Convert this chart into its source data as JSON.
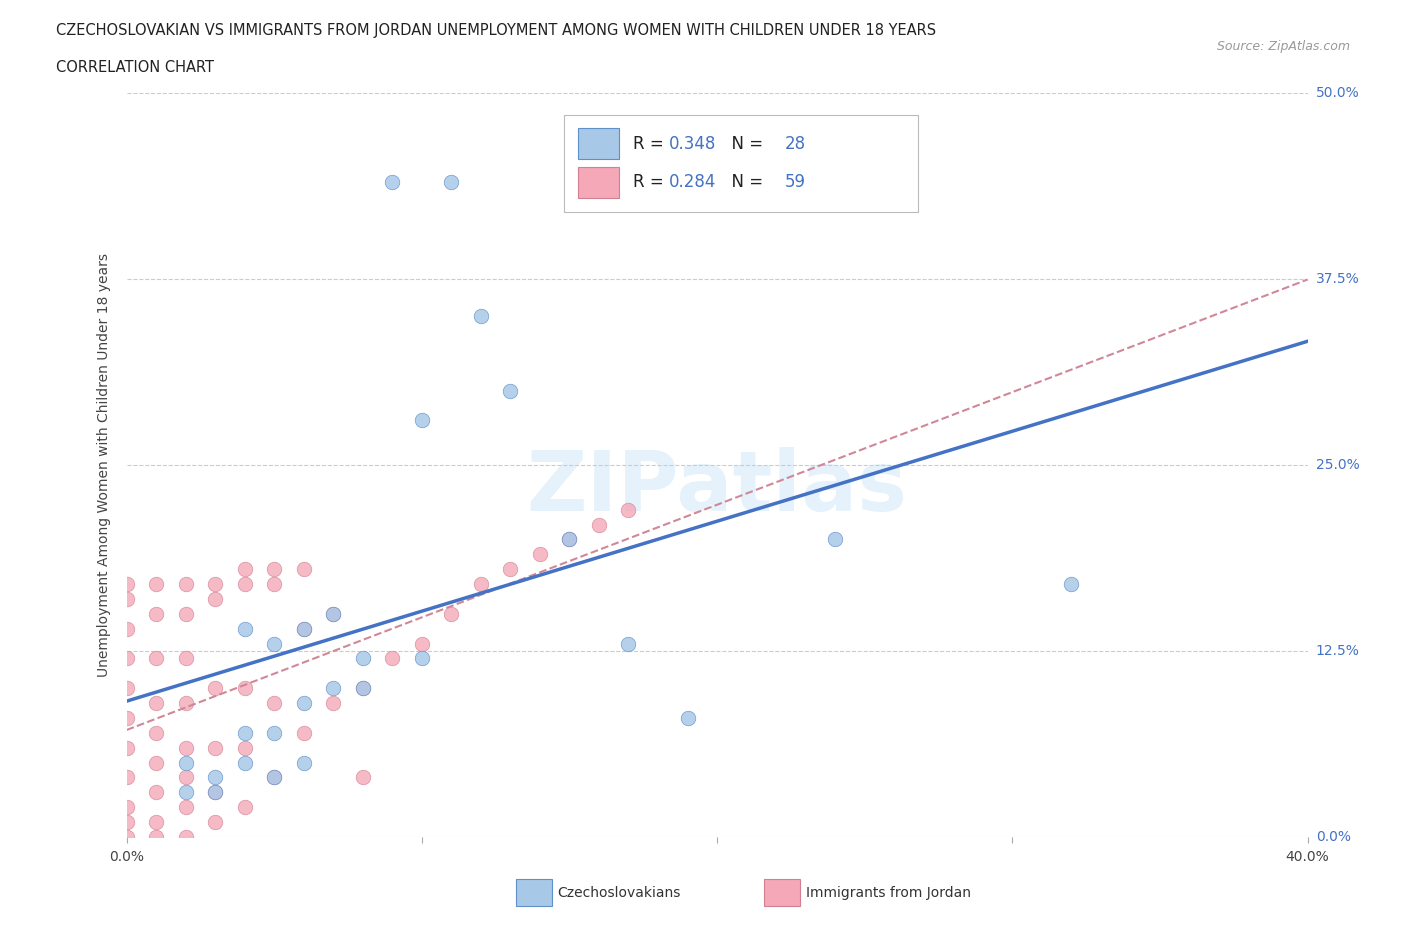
{
  "title_line1": "CZECHOSLOVAKIAN VS IMMIGRANTS FROM JORDAN UNEMPLOYMENT AMONG WOMEN WITH CHILDREN UNDER 18 YEARS",
  "title_line2": "CORRELATION CHART",
  "source": "Source: ZipAtlas.com",
  "ylabel": "Unemployment Among Women with Children Under 18 years",
  "watermark": "ZIPatlas",
  "legend_label1": "Czechoslovakians",
  "legend_label2": "Immigrants from Jordan",
  "R1": 0.348,
  "N1": 28,
  "R2": 0.284,
  "N2": 59,
  "color1": "#a8c8e8",
  "color2": "#f4a8b8",
  "line1_color": "#4472c4",
  "line2_color": "#d08898",
  "background_color": "#ffffff",
  "xlim": [
    0.0,
    0.4
  ],
  "ylim": [
    0.0,
    0.5
  ],
  "czech_x": [
    0.02,
    0.03,
    0.04,
    0.04,
    0.05,
    0.05,
    0.06,
    0.06,
    0.07,
    0.07,
    0.08,
    0.09,
    0.1,
    0.11,
    0.12,
    0.13,
    0.15,
    0.17,
    0.19,
    0.24,
    0.32,
    0.02,
    0.03,
    0.04,
    0.05,
    0.06,
    0.08,
    0.1
  ],
  "czech_y": [
    0.05,
    0.04,
    0.05,
    0.14,
    0.04,
    0.13,
    0.09,
    0.14,
    0.1,
    0.15,
    0.1,
    0.44,
    0.28,
    0.44,
    0.35,
    0.3,
    0.2,
    0.13,
    0.08,
    0.2,
    0.17,
    0.03,
    0.03,
    0.07,
    0.07,
    0.05,
    0.12,
    0.12
  ],
  "jordan_x": [
    0.0,
    0.0,
    0.0,
    0.0,
    0.0,
    0.0,
    0.0,
    0.0,
    0.0,
    0.0,
    0.01,
    0.01,
    0.01,
    0.01,
    0.01,
    0.01,
    0.01,
    0.01,
    0.02,
    0.02,
    0.02,
    0.02,
    0.02,
    0.02,
    0.02,
    0.03,
    0.03,
    0.03,
    0.03,
    0.03,
    0.04,
    0.04,
    0.04,
    0.04,
    0.05,
    0.05,
    0.05,
    0.06,
    0.06,
    0.07,
    0.07,
    0.08,
    0.09,
    0.1,
    0.11,
    0.12,
    0.13,
    0.14,
    0.15,
    0.16,
    0.17,
    0.0,
    0.01,
    0.02,
    0.03,
    0.04,
    0.05,
    0.06,
    0.08
  ],
  "jordan_y": [
    0.0,
    0.01,
    0.02,
    0.04,
    0.06,
    0.08,
    0.1,
    0.12,
    0.14,
    0.17,
    0.0,
    0.01,
    0.03,
    0.05,
    0.07,
    0.09,
    0.12,
    0.15,
    0.0,
    0.02,
    0.04,
    0.06,
    0.09,
    0.12,
    0.15,
    0.01,
    0.03,
    0.06,
    0.1,
    0.16,
    0.02,
    0.06,
    0.1,
    0.17,
    0.04,
    0.09,
    0.17,
    0.07,
    0.14,
    0.09,
    0.15,
    0.1,
    0.12,
    0.13,
    0.15,
    0.17,
    0.18,
    0.19,
    0.2,
    0.21,
    0.22,
    0.16,
    0.17,
    0.17,
    0.17,
    0.18,
    0.18,
    0.18,
    0.04
  ]
}
